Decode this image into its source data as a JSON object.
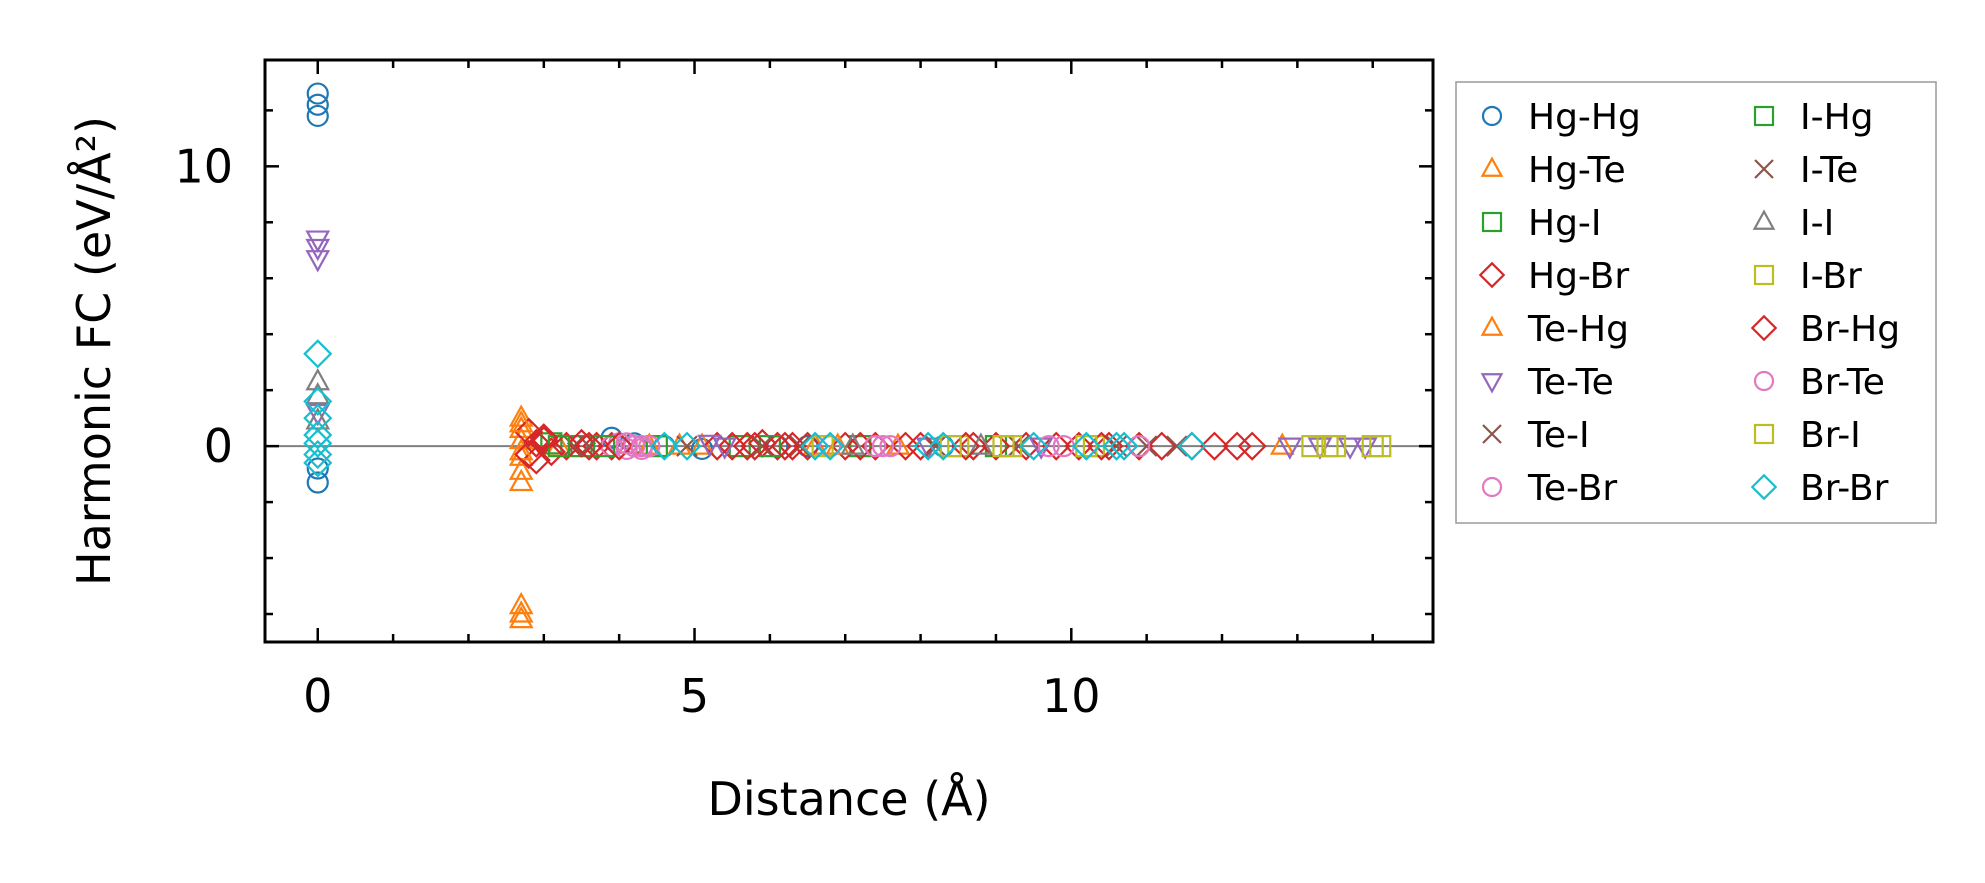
{
  "chart_data": {
    "type": "scatter",
    "title": "",
    "xlabel": "Distance (Å)",
    "ylabel": "Harmonic FC (eV/Å²)",
    "xlim": [
      -0.7,
      14.8
    ],
    "ylim": [
      -7.0,
      13.8
    ],
    "xticks": [
      0,
      5,
      10
    ],
    "xtick_labels": [
      "0",
      "5",
      "10"
    ],
    "yticks": [
      0,
      10
    ],
    "ytick_labels": [
      "0",
      "10"
    ],
    "grid": false,
    "zero_line": true,
    "legend_position": "outside-right",
    "series": [
      {
        "name": "Hg-Hg",
        "marker": "circle",
        "color": "#1f77b4",
        "points": [
          [
            0,
            12.6
          ],
          [
            0,
            12.2
          ],
          [
            0,
            11.8
          ],
          [
            0,
            -0.8
          ],
          [
            0,
            -1.3
          ],
          [
            3.9,
            0.3
          ],
          [
            4.2,
            0.1
          ],
          [
            4.6,
            0.0
          ],
          [
            5.1,
            -0.1
          ],
          [
            6.1,
            0.0
          ],
          [
            6.5,
            0.0
          ],
          [
            7.4,
            0.0
          ],
          [
            8.3,
            0.0
          ]
        ]
      },
      {
        "name": "Hg-Te",
        "marker": "triangle-up",
        "color": "#ff7f0e",
        "points": [
          [
            2.7,
            1.0
          ],
          [
            2.7,
            0.6
          ],
          [
            2.7,
            0.2
          ],
          [
            2.7,
            -0.4
          ],
          [
            2.7,
            -0.9
          ],
          [
            2.7,
            -1.3
          ],
          [
            2.7,
            -5.7
          ],
          [
            2.7,
            -6.2
          ],
          [
            3.2,
            0.0
          ],
          [
            4.4,
            0.0
          ],
          [
            5.1,
            0.0
          ],
          [
            6.6,
            0.0
          ],
          [
            7.7,
            0.0
          ],
          [
            12.8,
            0.0
          ]
        ]
      },
      {
        "name": "Hg-I",
        "marker": "square",
        "color": "#2ca02c",
        "points": [
          [
            3.1,
            0.1
          ],
          [
            3.5,
            0.0
          ],
          [
            4.5,
            0.0
          ],
          [
            5.6,
            0.0
          ],
          [
            7.2,
            0.0
          ],
          [
            9.0,
            0.0
          ]
        ]
      },
      {
        "name": "Hg-Br",
        "marker": "diamond",
        "color": "#d62728",
        "points": [
          [
            2.8,
            0.5
          ],
          [
            2.9,
            0.1
          ],
          [
            2.9,
            -0.5
          ],
          [
            3.0,
            0.2
          ],
          [
            3.1,
            -0.2
          ],
          [
            3.3,
            0.0
          ],
          [
            3.5,
            0.1
          ],
          [
            3.7,
            0.0
          ],
          [
            3.9,
            0.0
          ],
          [
            5.3,
            0.0
          ],
          [
            5.5,
            0.0
          ],
          [
            5.7,
            0.0
          ],
          [
            5.9,
            0.1
          ],
          [
            6.1,
            0.0
          ],
          [
            6.3,
            0.0
          ],
          [
            6.5,
            0.0
          ],
          [
            7.0,
            0.0
          ],
          [
            7.2,
            0.0
          ],
          [
            7.4,
            0.0
          ],
          [
            7.8,
            0.0
          ],
          [
            8.0,
            0.0
          ],
          [
            8.7,
            0.0
          ],
          [
            9.0,
            0.0
          ],
          [
            9.4,
            0.0
          ],
          [
            9.8,
            0.0
          ],
          [
            10.1,
            0.0
          ],
          [
            10.5,
            0.0
          ],
          [
            10.9,
            0.0
          ],
          [
            11.2,
            0.0
          ],
          [
            11.6,
            0.0
          ],
          [
            11.9,
            0.0
          ],
          [
            12.2,
            0.0
          ],
          [
            12.4,
            0.0
          ]
        ]
      },
      {
        "name": "Te-Hg",
        "marker": "triangle-up",
        "color": "#ff7f0e",
        "points": [
          [
            2.7,
            0.8
          ],
          [
            2.7,
            -0.2
          ],
          [
            2.7,
            -6.0
          ],
          [
            4.8,
            0.0
          ],
          [
            6.9,
            0.0
          ]
        ]
      },
      {
        "name": "Te-Te",
        "marker": "triangle-down",
        "color": "#9467bd",
        "points": [
          [
            0,
            7.4
          ],
          [
            0,
            7.1
          ],
          [
            0,
            6.7
          ],
          [
            0,
            1.2
          ],
          [
            5.2,
            0.1
          ],
          [
            5.4,
            0.0
          ],
          [
            8.1,
            0.0
          ],
          [
            9.6,
            0.0
          ],
          [
            12.9,
            0.0
          ],
          [
            13.3,
            0.0
          ],
          [
            13.7,
            0.0
          ],
          [
            13.9,
            0.0
          ]
        ]
      },
      {
        "name": "Te-I",
        "marker": "x",
        "color": "#8c564b",
        "points": [
          [
            3.4,
            0.0
          ],
          [
            4.9,
            0.0
          ],
          [
            6.4,
            0.0
          ],
          [
            8.2,
            0.0
          ],
          [
            10.6,
            0.0
          ],
          [
            11.0,
            0.0
          ],
          [
            11.4,
            0.0
          ]
        ]
      },
      {
        "name": "Te-Br",
        "marker": "circle",
        "color": "#e377c2",
        "points": [
          [
            3.9,
            0.0
          ],
          [
            4.0,
            0.1
          ],
          [
            4.1,
            -0.1
          ],
          [
            4.2,
            0.0
          ],
          [
            4.3,
            0.0
          ],
          [
            4.4,
            0.0
          ],
          [
            6.8,
            0.0
          ],
          [
            7.4,
            0.0
          ],
          [
            7.6,
            0.0
          ],
          [
            9.9,
            0.0
          ],
          [
            10.9,
            0.0
          ]
        ]
      },
      {
        "name": "I-Hg",
        "marker": "square",
        "color": "#2ca02c",
        "points": [
          [
            3.2,
            0.0
          ],
          [
            3.8,
            0.0
          ],
          [
            6.0,
            0.0
          ]
        ]
      },
      {
        "name": "I-Te",
        "marker": "x",
        "color": "#8c564b",
        "points": [
          [
            3.6,
            0.0
          ],
          [
            5.9,
            0.0
          ],
          [
            9.3,
            0.0
          ]
        ]
      },
      {
        "name": "I-I",
        "marker": "triangle-up",
        "color": "#7f7f7f",
        "points": [
          [
            0,
            2.3
          ],
          [
            0,
            1.8
          ],
          [
            0,
            0.9
          ],
          [
            7.1,
            0.0
          ],
          [
            8.8,
            0.0
          ]
        ]
      },
      {
        "name": "I-Br",
        "marker": "square",
        "color": "#bcbd22",
        "points": [
          [
            6.7,
            0.0
          ],
          [
            8.5,
            0.0
          ],
          [
            9.1,
            0.0
          ],
          [
            10.3,
            0.0
          ],
          [
            13.2,
            0.0
          ],
          [
            13.4,
            0.0
          ],
          [
            14.1,
            0.0
          ]
        ]
      },
      {
        "name": "Br-Hg",
        "marker": "diamond",
        "color": "#d62728",
        "points": [
          [
            2.8,
            -0.3
          ],
          [
            3.0,
            0.3
          ],
          [
            3.6,
            0.0
          ],
          [
            4.0,
            0.0
          ],
          [
            5.8,
            0.0
          ],
          [
            6.2,
            0.0
          ],
          [
            8.6,
            0.0
          ],
          [
            10.4,
            0.0
          ]
        ]
      },
      {
        "name": "Br-Te",
        "marker": "circle",
        "color": "#e377c2",
        "points": [
          [
            4.1,
            0.1
          ],
          [
            4.3,
            -0.1
          ],
          [
            7.5,
            0.0
          ],
          [
            9.7,
            0.0
          ]
        ]
      },
      {
        "name": "Br-I",
        "marker": "square",
        "color": "#bcbd22",
        "points": [
          [
            8.4,
            0.0
          ],
          [
            9.2,
            0.0
          ],
          [
            10.2,
            0.0
          ],
          [
            13.5,
            0.0
          ],
          [
            14.0,
            0.0
          ]
        ]
      },
      {
        "name": "Br-Br",
        "marker": "diamond",
        "color": "#17becf",
        "points": [
          [
            0,
            3.3
          ],
          [
            0,
            1.6
          ],
          [
            0,
            1.0
          ],
          [
            0,
            0.4
          ],
          [
            0,
            0.1
          ],
          [
            0,
            -0.3
          ],
          [
            0,
            -0.6
          ],
          [
            4.6,
            0.0
          ],
          [
            4.9,
            0.0
          ],
          [
            6.6,
            0.0
          ],
          [
            6.8,
            0.0
          ],
          [
            8.1,
            0.0
          ],
          [
            8.3,
            0.0
          ],
          [
            9.5,
            0.0
          ],
          [
            10.2,
            0.0
          ],
          [
            10.6,
            0.0
          ],
          [
            10.7,
            0.0
          ],
          [
            11.6,
            0.0
          ]
        ]
      }
    ]
  }
}
